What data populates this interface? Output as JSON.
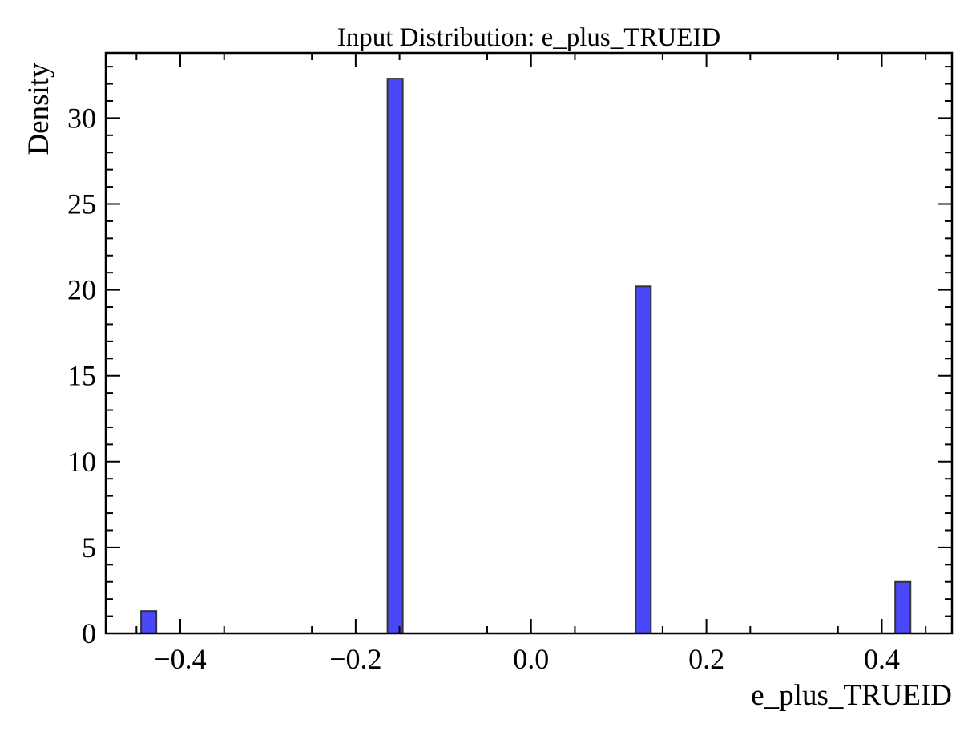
{
  "chart_data": {
    "type": "bar",
    "title": "Input Distribution: e_plus_TRUEID",
    "xlabel": "e_plus_TRUEID",
    "ylabel": "Density",
    "xlim": [
      -0.485,
      0.48
    ],
    "ylim": [
      0,
      33.8
    ],
    "x_major_ticks": [
      -0.4,
      -0.2,
      0.0,
      0.2,
      0.4
    ],
    "x_tick_labels": [
      "−0.4",
      "−0.2",
      "0.0",
      "0.2",
      "0.4"
    ],
    "y_major_ticks": [
      0,
      5,
      10,
      15,
      20,
      25,
      30
    ],
    "y_tick_labels": [
      "0",
      "5",
      "10",
      "15",
      "20",
      "25",
      "30"
    ],
    "bin_width": 0.0174,
    "bars": [
      {
        "x": -0.436,
        "value": 1.3
      },
      {
        "x": -0.155,
        "value": 32.3
      },
      {
        "x": 0.128,
        "value": 20.2
      },
      {
        "x": 0.424,
        "value": 3.0
      }
    ],
    "colors": {
      "bar_fill": "#4848fa",
      "bar_edge": "#333333",
      "axes": "#000000"
    },
    "grid": false,
    "legend": "none"
  }
}
